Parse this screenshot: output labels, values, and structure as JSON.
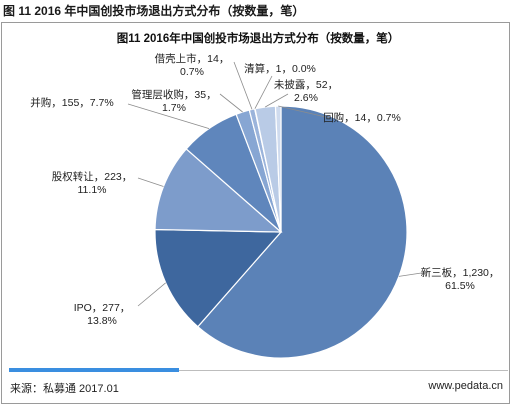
{
  "figure": {
    "heading": "图 11 2016 年中国创投市场退出方式分布（按数量，笔）",
    "source": "来源：私募通 2017.01",
    "website": "www.pedata.cn"
  },
  "chart_data": {
    "type": "pie",
    "title": "图11 2016年中国创投市场退出方式分布（按数量，笔）",
    "unit": "笔",
    "slices": [
      {
        "name": "新三板",
        "value": 1230,
        "percent": "61.5%",
        "label_line1": "新三板，1,230，",
        "label_line2": "61.5%",
        "color": "#5b82b7"
      },
      {
        "name": "IPO",
        "value": 277,
        "percent": "13.8%",
        "label_line1": "IPO，277，",
        "label_line2": "13.8%",
        "color": "#3e679e"
      },
      {
        "name": "股权转让",
        "value": 223,
        "percent": "11.1%",
        "label_line1": "股权转让，223，",
        "label_line2": "11.1%",
        "color": "#7d9ccb"
      },
      {
        "name": "并购",
        "value": 155,
        "percent": "7.7%",
        "label_line1": "并购，155，7.7%",
        "label_line2": "",
        "color": "#5f86bc"
      },
      {
        "name": "管理层收购",
        "value": 35,
        "percent": "1.7%",
        "label_line1": "管理层收购，35，",
        "label_line2": "1.7%",
        "color": "#87a6d3"
      },
      {
        "name": "借壳上市",
        "value": 14,
        "percent": "0.7%",
        "label_line1": "借壳上市，14，",
        "label_line2": "0.7%",
        "color": "#9bb4db"
      },
      {
        "name": "清算",
        "value": 1,
        "percent": "0.0%",
        "label_line1": "清算，1，0.0%",
        "label_line2": "",
        "color": "#aec3e3"
      },
      {
        "name": "未披露",
        "value": 52,
        "percent": "2.6%",
        "label_line1": "未披露，52，",
        "label_line2": "2.6%",
        "color": "#b9cbe6"
      },
      {
        "name": "回购",
        "value": 14,
        "percent": "0.7%",
        "label_line1": "回购，14，0.7%",
        "label_line2": "",
        "color": "#cfdbee"
      }
    ]
  }
}
